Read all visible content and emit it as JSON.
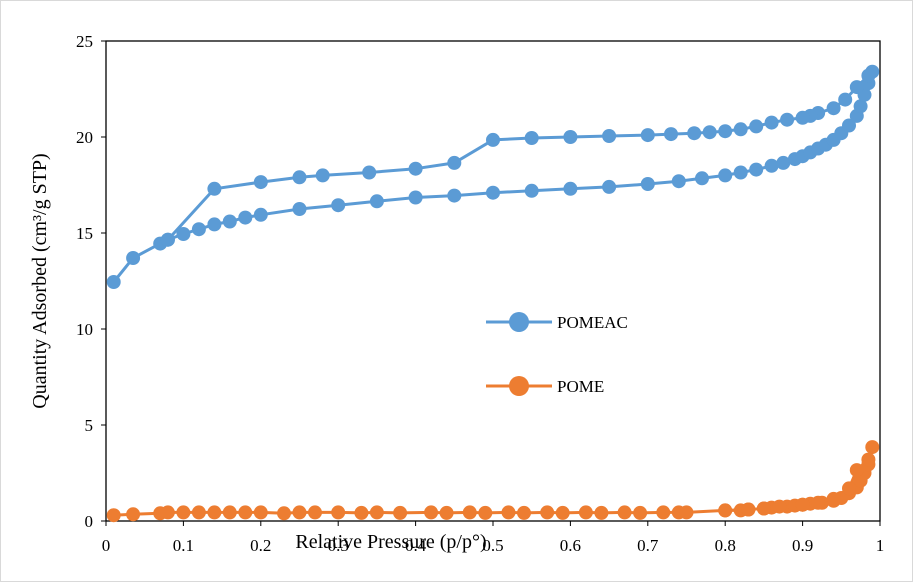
{
  "chart_data": {
    "type": "line",
    "xlabel": "Relative Pressure (p/p°)",
    "ylabel": "Quantity Adsorbed (cm³/g STP)",
    "xlim": [
      0,
      1
    ],
    "ylim": [
      0,
      25
    ],
    "x_ticks": [
      "0",
      "0.1",
      "0.2",
      "0.3",
      "0.4",
      "0.5",
      "0.6",
      "0.7",
      "0.8",
      "0.9",
      "1"
    ],
    "y_ticks": [
      "0",
      "5",
      "10",
      "15",
      "20",
      "25"
    ],
    "grid": false,
    "legend_position": "center-right",
    "series": [
      {
        "name": "POMEAC",
        "color": "#5b9bd5",
        "points": [
          [
            0.01,
            12.45
          ],
          [
            0.035,
            13.7
          ],
          [
            0.07,
            14.45
          ],
          [
            0.08,
            14.65
          ],
          [
            0.1,
            14.95
          ],
          [
            0.12,
            15.2
          ],
          [
            0.14,
            15.45
          ],
          [
            0.16,
            15.6
          ],
          [
            0.18,
            15.8
          ],
          [
            0.2,
            15.95
          ],
          [
            0.25,
            16.25
          ],
          [
            0.3,
            16.45
          ],
          [
            0.35,
            16.65
          ],
          [
            0.4,
            16.85
          ],
          [
            0.45,
            16.95
          ],
          [
            0.5,
            17.1
          ],
          [
            0.55,
            17.2
          ],
          [
            0.6,
            17.3
          ],
          [
            0.65,
            17.4
          ],
          [
            0.7,
            17.55
          ],
          [
            0.74,
            17.7
          ],
          [
            0.77,
            17.85
          ],
          [
            0.8,
            18.0
          ],
          [
            0.82,
            18.15
          ],
          [
            0.84,
            18.3
          ],
          [
            0.86,
            18.5
          ],
          [
            0.875,
            18.65
          ],
          [
            0.89,
            18.85
          ],
          [
            0.9,
            19.0
          ],
          [
            0.91,
            19.2
          ],
          [
            0.92,
            19.4
          ],
          [
            0.93,
            19.6
          ],
          [
            0.94,
            19.85
          ],
          [
            0.95,
            20.2
          ],
          [
            0.96,
            20.6
          ],
          [
            0.97,
            21.1
          ],
          [
            0.975,
            21.6
          ],
          [
            0.98,
            22.2
          ],
          [
            0.985,
            22.8
          ],
          [
            0.99,
            23.4
          ],
          [
            0.985,
            23.2
          ],
          [
            0.97,
            22.6
          ],
          [
            0.955,
            21.95
          ],
          [
            0.94,
            21.5
          ],
          [
            0.92,
            21.25
          ],
          [
            0.91,
            21.1
          ],
          [
            0.9,
            21.0
          ],
          [
            0.88,
            20.9
          ],
          [
            0.86,
            20.75
          ],
          [
            0.84,
            20.55
          ],
          [
            0.82,
            20.4
          ],
          [
            0.8,
            20.3
          ],
          [
            0.78,
            20.25
          ],
          [
            0.76,
            20.2
          ],
          [
            0.73,
            20.15
          ],
          [
            0.7,
            20.1
          ],
          [
            0.65,
            20.05
          ],
          [
            0.6,
            20.0
          ],
          [
            0.55,
            19.95
          ],
          [
            0.5,
            19.85
          ],
          [
            0.45,
            18.65
          ],
          [
            0.4,
            18.35
          ],
          [
            0.34,
            18.15
          ],
          [
            0.28,
            18.0
          ],
          [
            0.25,
            17.9
          ],
          [
            0.2,
            17.65
          ],
          [
            0.14,
            17.3
          ],
          [
            0.08,
            14.65
          ]
        ]
      },
      {
        "name": "POME",
        "color": "#ed7d31",
        "points": [
          [
            0.01,
            0.3
          ],
          [
            0.035,
            0.35
          ],
          [
            0.07,
            0.4
          ],
          [
            0.08,
            0.45
          ],
          [
            0.1,
            0.45
          ],
          [
            0.12,
            0.45
          ],
          [
            0.14,
            0.45
          ],
          [
            0.16,
            0.45
          ],
          [
            0.18,
            0.45
          ],
          [
            0.2,
            0.45
          ],
          [
            0.23,
            0.4
          ],
          [
            0.25,
            0.45
          ],
          [
            0.27,
            0.45
          ],
          [
            0.3,
            0.45
          ],
          [
            0.33,
            0.42
          ],
          [
            0.35,
            0.45
          ],
          [
            0.38,
            0.42
          ],
          [
            0.42,
            0.45
          ],
          [
            0.44,
            0.42
          ],
          [
            0.47,
            0.45
          ],
          [
            0.49,
            0.42
          ],
          [
            0.52,
            0.45
          ],
          [
            0.54,
            0.42
          ],
          [
            0.57,
            0.45
          ],
          [
            0.59,
            0.42
          ],
          [
            0.62,
            0.45
          ],
          [
            0.64,
            0.42
          ],
          [
            0.67,
            0.45
          ],
          [
            0.69,
            0.42
          ],
          [
            0.72,
            0.45
          ],
          [
            0.74,
            0.45
          ],
          [
            0.75,
            0.45
          ],
          [
            0.8,
            0.55
          ],
          [
            0.82,
            0.55
          ],
          [
            0.83,
            0.6
          ],
          [
            0.85,
            0.65
          ],
          [
            0.86,
            0.7
          ],
          [
            0.88,
            0.75
          ],
          [
            0.89,
            0.8
          ],
          [
            0.9,
            0.85
          ],
          [
            0.91,
            0.9
          ],
          [
            0.925,
            0.95
          ],
          [
            0.94,
            1.05
          ],
          [
            0.95,
            1.2
          ],
          [
            0.96,
            1.45
          ],
          [
            0.97,
            1.75
          ],
          [
            0.975,
            2.1
          ],
          [
            0.98,
            2.5
          ],
          [
            0.985,
            2.95
          ],
          [
            0.99,
            3.85
          ],
          [
            0.985,
            3.2
          ],
          [
            0.97,
            2.65
          ],
          [
            0.96,
            1.7
          ],
          [
            0.94,
            1.15
          ],
          [
            0.92,
            0.95
          ],
          [
            0.9,
            0.85
          ],
          [
            0.87,
            0.75
          ],
          [
            0.85,
            0.65
          ],
          [
            0.83,
            0.6
          ],
          [
            0.8,
            0.55
          ]
        ]
      }
    ]
  }
}
